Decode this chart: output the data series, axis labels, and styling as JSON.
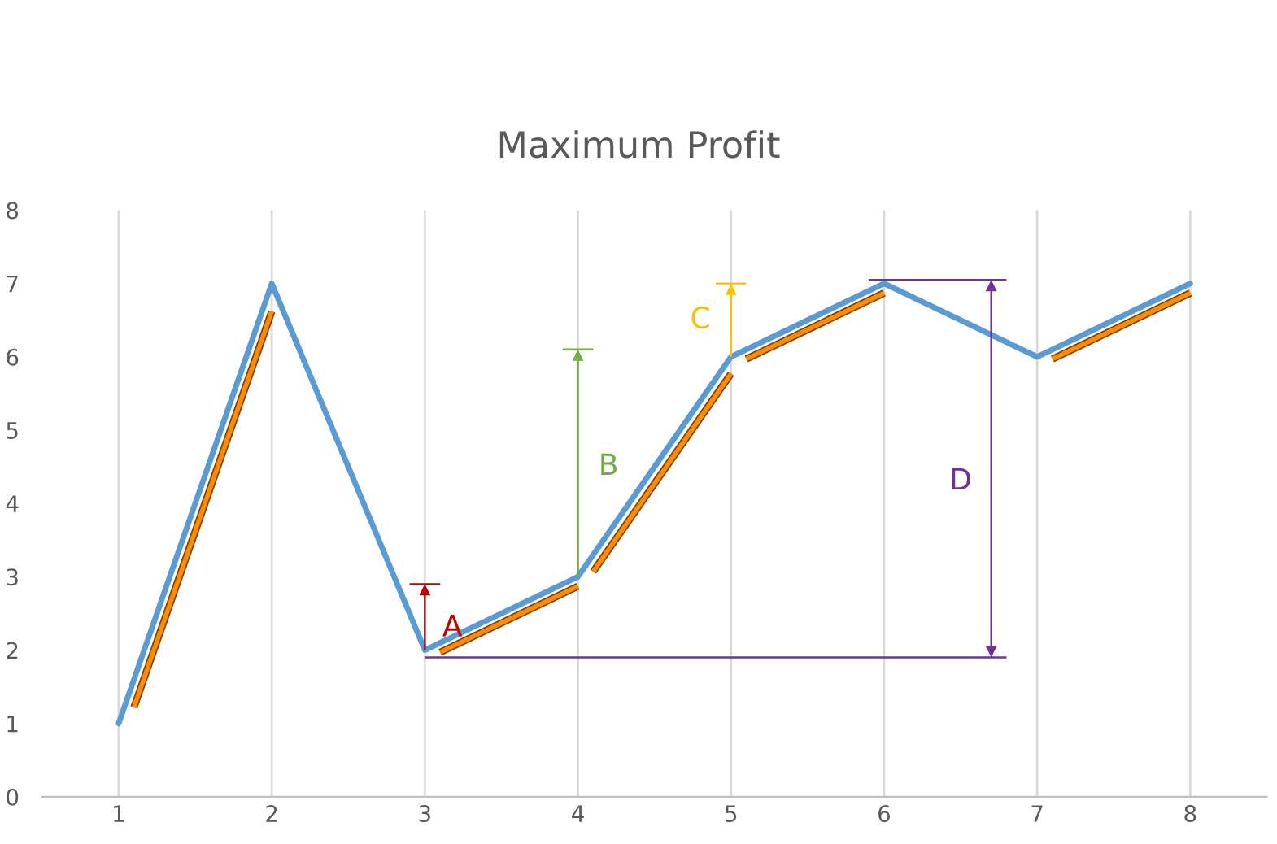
{
  "chart_data": {
    "type": "line",
    "title": "Maximum Profit",
    "categories": [
      "1",
      "2",
      "3",
      "4",
      "5",
      "6",
      "7",
      "8"
    ],
    "series": [
      {
        "color": "#5b9bd5",
        "values": [
          1,
          7,
          2,
          3,
          6,
          7,
          6,
          7
        ]
      }
    ],
    "ylim": [
      0,
      8
    ],
    "yticks": [
      0,
      1,
      2,
      3,
      4,
      5,
      6,
      7,
      8
    ],
    "grid": "x",
    "marker": "none",
    "line_style": "solid",
    "annotations": [
      {
        "text": "A",
        "x": "3",
        "y": 2
      },
      "B",
      "C",
      "D"
    ]
  }
}
